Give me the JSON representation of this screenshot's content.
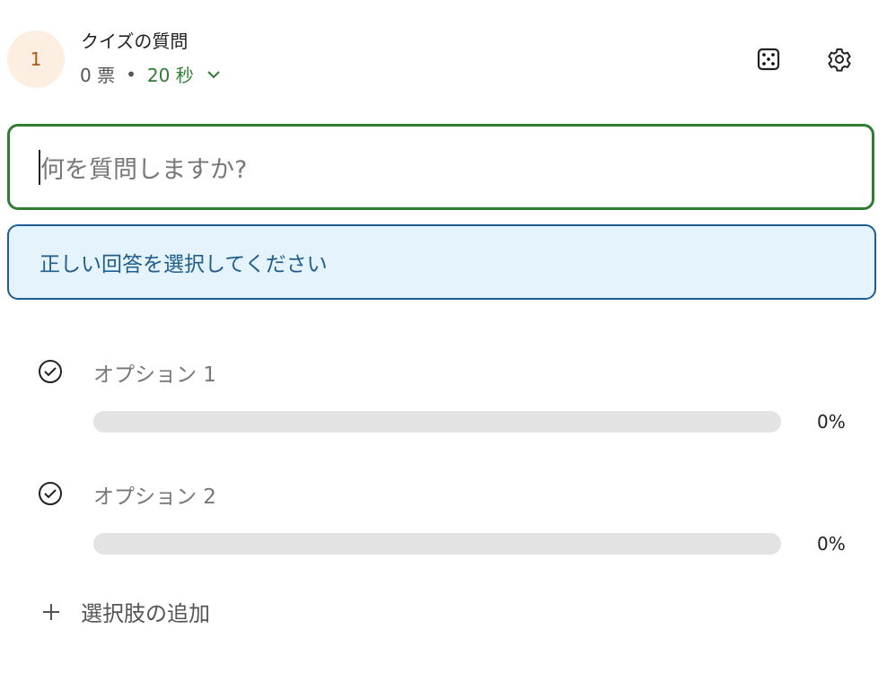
{
  "header": {
    "number": "1",
    "title": "クイズの質問",
    "votes": "0 票",
    "separator": "•",
    "timer": "20 秒"
  },
  "question": {
    "placeholder": "何を質問しますか?"
  },
  "info": {
    "message": "正しい回答を選択してください"
  },
  "options": [
    {
      "label": "オプション 1",
      "percent_label": "0%",
      "percent": 0
    },
    {
      "label": "オプション 2",
      "percent_label": "0%",
      "percent": 0
    }
  ],
  "add_option": {
    "label": "選択肢の追加"
  },
  "colors": {
    "accent": "#2e7d32",
    "info": "#1f5e8c"
  }
}
